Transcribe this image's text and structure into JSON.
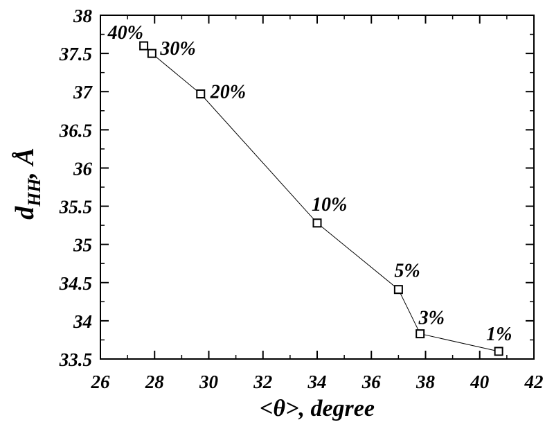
{
  "chart_data": {
    "type": "line",
    "xlabel": "<θ>, degree",
    "ylabel": "d",
    "ylabel_subscript": "HH",
    "ylabel_unit": ", Å",
    "xlim": [
      26,
      42
    ],
    "ylim": [
      33.5,
      38
    ],
    "x_ticks": [
      "26",
      "28",
      "30",
      "32",
      "34",
      "36",
      "38",
      "40",
      "42"
    ],
    "y_ticks": [
      "33.5",
      "34",
      "34.5",
      "35",
      "35.5",
      "36",
      "36.5",
      "37",
      "37.5",
      "38"
    ],
    "grid": false,
    "legend": "none",
    "marker": "open-square",
    "line_color": "#000000",
    "points": [
      {
        "label": "40%",
        "x": 27.6,
        "y": 37.6
      },
      {
        "label": "30%",
        "x": 27.9,
        "y": 37.5
      },
      {
        "label": "20%",
        "x": 29.7,
        "y": 36.97
      },
      {
        "label": "10%",
        "x": 34.0,
        "y": 35.28
      },
      {
        "label": "5%",
        "x": 37.0,
        "y": 34.41
      },
      {
        "label": "3%",
        "x": 37.8,
        "y": 33.83
      },
      {
        "label": "1%",
        "x": 40.7,
        "y": 33.6
      }
    ]
  }
}
